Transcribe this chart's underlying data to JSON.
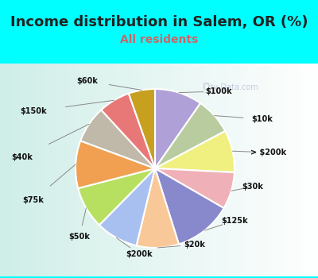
{
  "title": "Income distribution in Salem, OR (%)",
  "subtitle": "All residents",
  "title_color": "#222222",
  "subtitle_color": "#cc6666",
  "bg_top_color": "#00FFFF",
  "chart_bg": "#e0f5f0",
  "labels": [
    "$100k",
    "$10k",
    "> $200k",
    "$30k",
    "$125k",
    "$20k",
    "$200k",
    "$50k",
    "$75k",
    "$40k",
    "$150k",
    "$60k"
  ],
  "values": [
    9,
    7,
    8,
    7,
    11,
    8,
    8,
    8,
    9,
    7,
    6,
    5
  ],
  "colors": [
    "#b0a0d8",
    "#b8cca0",
    "#f0f080",
    "#f0b0b8",
    "#8888cc",
    "#f8c898",
    "#a8c0f0",
    "#b8e060",
    "#f0a050",
    "#c0b8a8",
    "#e87878",
    "#c8a020"
  ],
  "watermark": "City-Data.com",
  "title_fontsize": 13,
  "subtitle_fontsize": 10
}
